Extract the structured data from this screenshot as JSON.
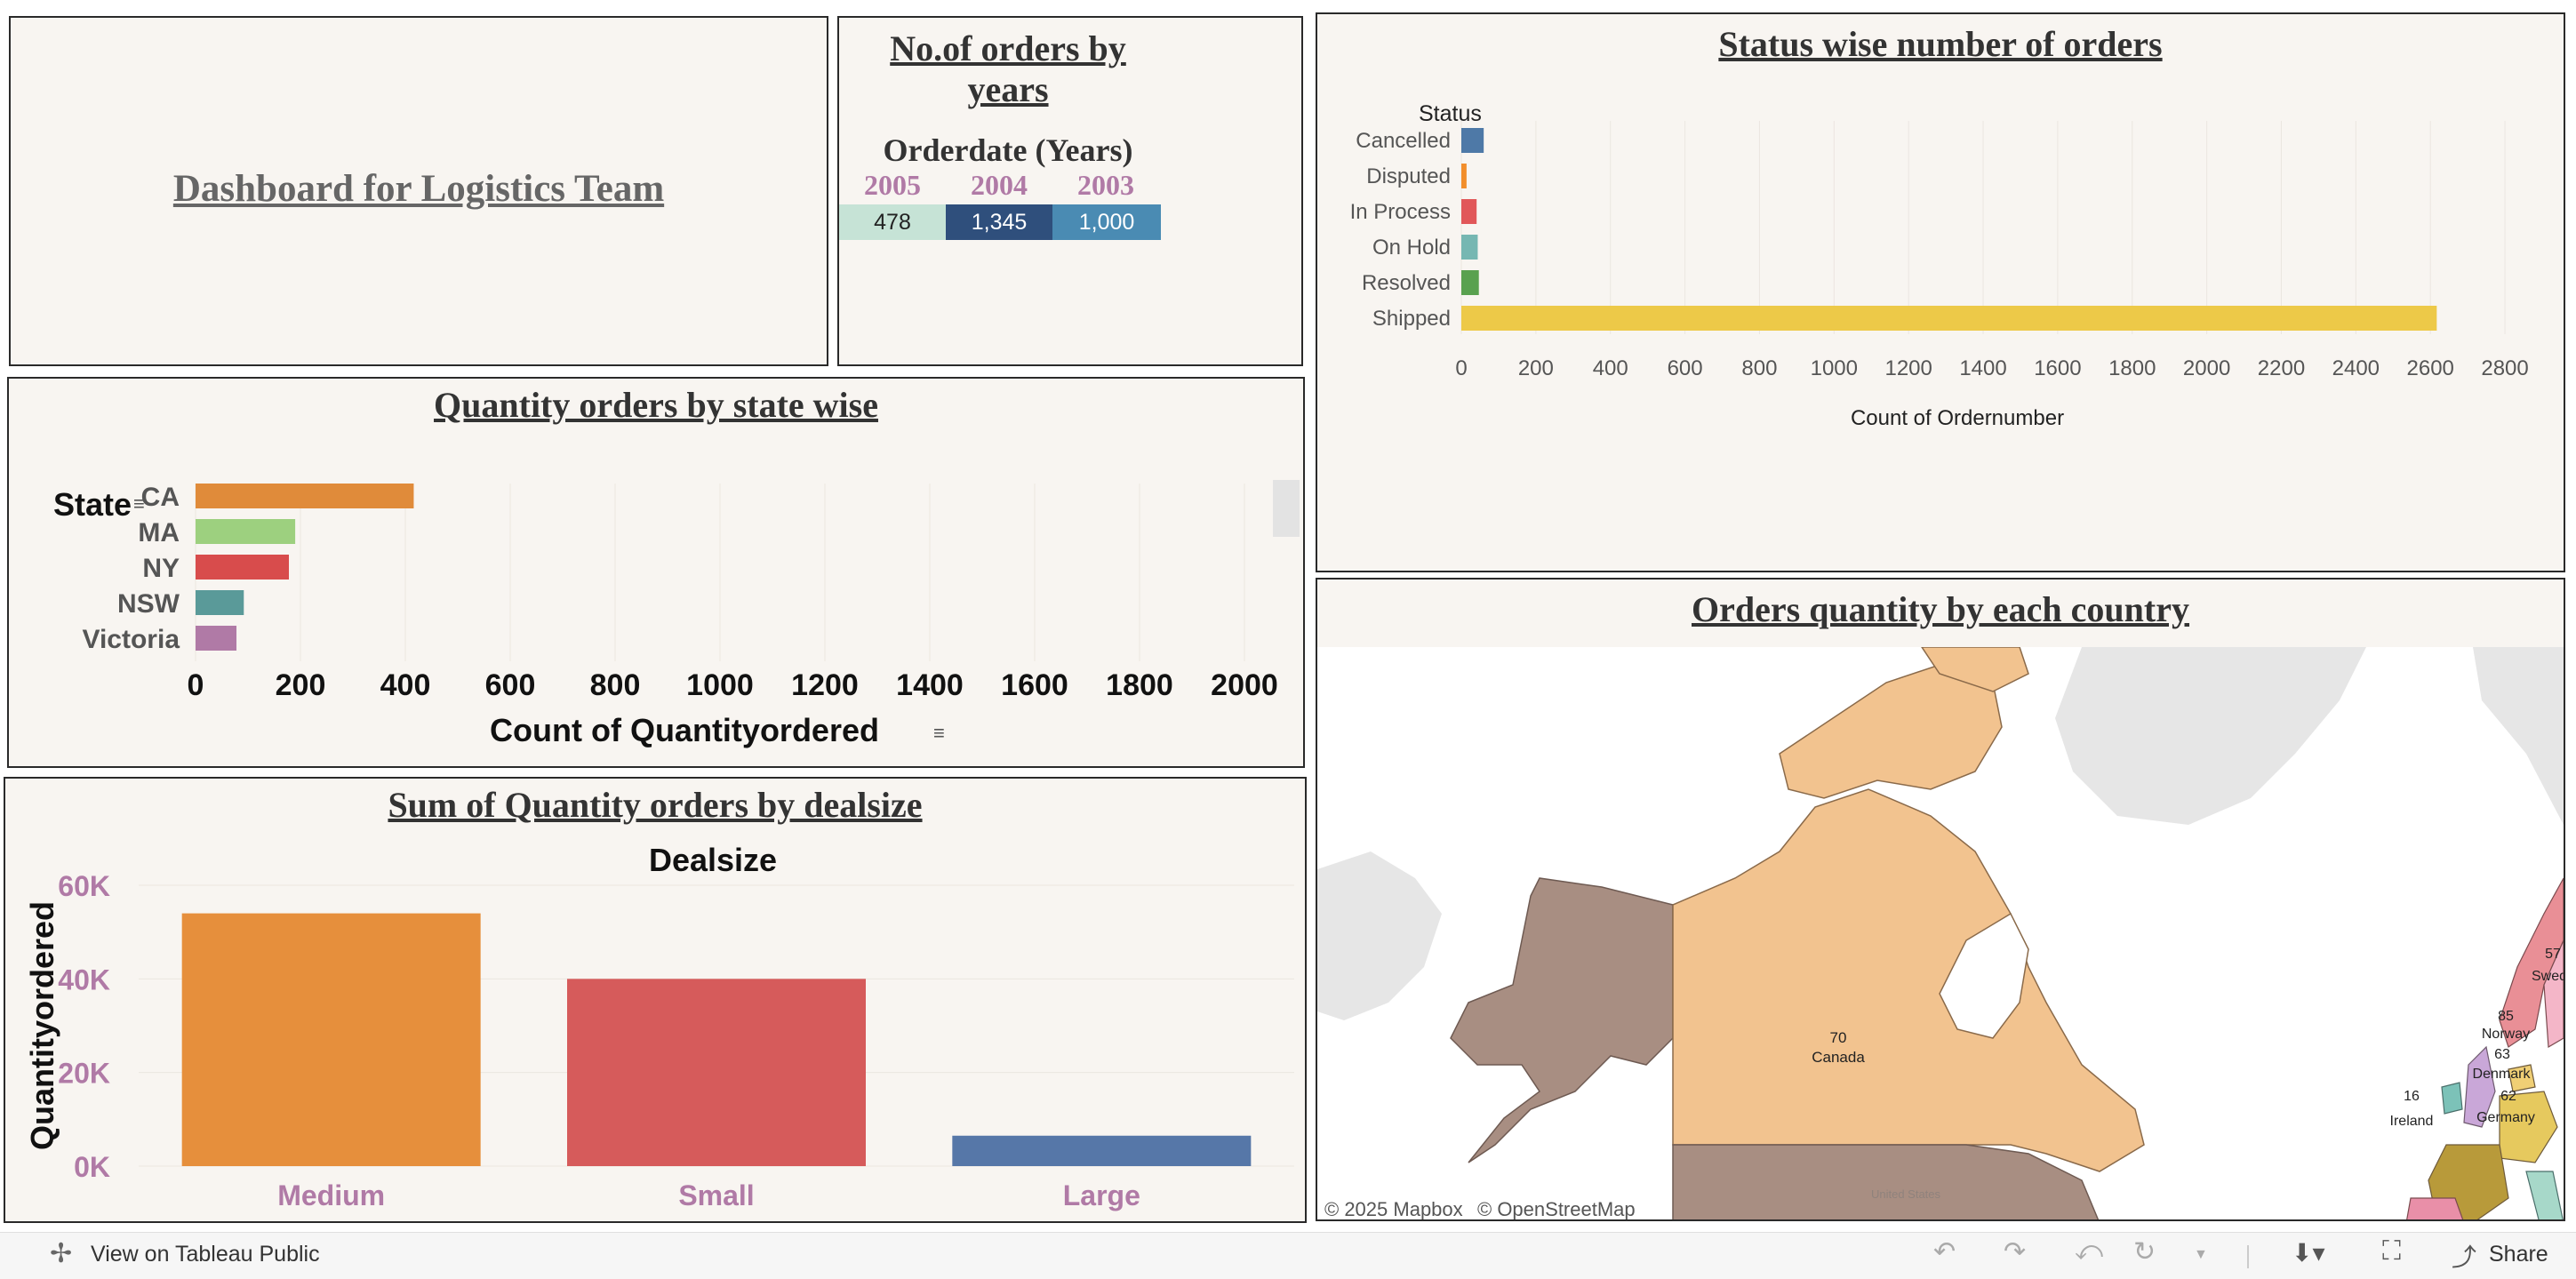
{
  "main_title": "Dashboard for Logistics Team",
  "years_panel": {
    "title_line1": "No.of orders by",
    "title_line2": "years",
    "header": "Orderdate (Years)",
    "years": [
      "2005",
      "2004",
      "2003"
    ],
    "values": [
      "478",
      "1,345",
      "1,000"
    ],
    "colors": [
      "#c6e3d6",
      "#2f4f7c",
      "#4a8bb3"
    ]
  },
  "status_panel": {
    "title": "Status wise number of orders",
    "chart_data": {
      "type": "bar",
      "orientation": "horizontal",
      "ylabel": "Status",
      "xlabel": "Count of Ordernumber",
      "categories": [
        "Cancelled",
        "Disputed",
        "In Process",
        "On Hold",
        "Resolved",
        "Shipped"
      ],
      "values": [
        60,
        14,
        41,
        44,
        47,
        2617
      ],
      "colors": [
        "#4e79a7",
        "#f28e2b",
        "#e15759",
        "#76b7b2",
        "#59a14f",
        "#edc948"
      ],
      "xticks": [
        "0",
        "200",
        "400",
        "600",
        "800",
        "1000",
        "1200",
        "1400",
        "1600",
        "1800",
        "2000",
        "2200",
        "2400",
        "2600",
        "2800"
      ],
      "xlim": [
        0,
        2900
      ]
    }
  },
  "state_panel": {
    "title": "Quantity orders by state wise",
    "chart_data": {
      "type": "bar",
      "orientation": "horizontal",
      "ylabel": "State",
      "xlabel": "Count of Quantityordered",
      "categories": [
        "CA",
        "MA",
        "NY",
        "NSW",
        "Victoria"
      ],
      "values": [
        416,
        190,
        178,
        92,
        78
      ],
      "colors": [
        "#e08b3a",
        "#9dd07f",
        "#d84c4c",
        "#5a9a99",
        "#b07aa6"
      ],
      "xticks": [
        "0",
        "200",
        "400",
        "600",
        "800",
        "1000",
        "1200",
        "1400",
        "1600",
        "1800",
        "2000"
      ],
      "xlim": [
        0,
        2000
      ]
    }
  },
  "dealsize_panel": {
    "title": "Sum of Quantity orders by dealsize",
    "chart_data": {
      "type": "bar",
      "xlabel": "Dealsize",
      "ylabel": "Quantityordered",
      "categories": [
        "Medium",
        "Small",
        "Large"
      ],
      "values": [
        54000,
        40000,
        6500
      ],
      "colors": [
        "#e68f3c",
        "#d65b5b",
        "#5677a8"
      ],
      "yticks": [
        "0K",
        "20K",
        "40K",
        "60K"
      ],
      "ylim": [
        0,
        60000
      ]
    }
  },
  "map_panel": {
    "title": "Orders quantity by each country",
    "canada_value": "70",
    "canada_label": "Canada",
    "norway_value": "85",
    "norway_label": "Norway",
    "sweden_value": "57",
    "sweden_label": "Swed",
    "denmark_value": "63",
    "denmark_label": "Denmark",
    "germany_value": "62",
    "germany_label": "Germany",
    "ireland_value": "16",
    "ireland_label": "Ireland",
    "us_label": "United States",
    "attribution1": "© 2025 Mapbox",
    "attribution2": "© OpenStreetMap"
  },
  "bottom_bar": {
    "view_label": "View on Tableau Public",
    "share_label": "Share"
  }
}
